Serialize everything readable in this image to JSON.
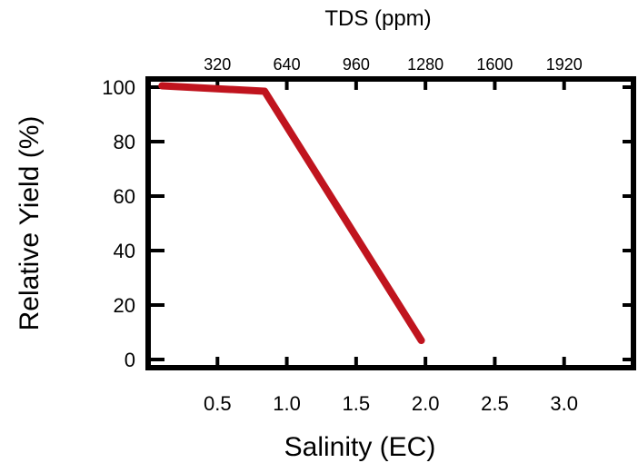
{
  "chart_data": {
    "type": "line",
    "title": "",
    "xlabel": "Salinity (EC)",
    "ylabel": "Relative Yield (%)",
    "top_axis_label": "TDS (ppm)",
    "xlim": [
      0,
      3.5
    ],
    "ylim": [
      -3,
      103
    ],
    "x_ticks": [
      0.5,
      1.0,
      1.5,
      2.0,
      2.5,
      3.0
    ],
    "x_tick_labels": [
      "0.5",
      "1.0",
      "1.5",
      "2.0",
      "2.5",
      "3.0"
    ],
    "y_ticks": [
      0,
      20,
      40,
      60,
      80,
      100
    ],
    "y_tick_labels": [
      "0",
      "20",
      "40",
      "60",
      "80",
      "100"
    ],
    "top_ticks": [
      320,
      640,
      960,
      1280,
      1600,
      1920
    ],
    "top_tick_labels": [
      "320",
      "640",
      "960",
      "1280",
      "1600",
      "1920"
    ],
    "top_axis_factor_ppm_per_ec": 640,
    "grid": false,
    "series": [
      {
        "color": "#c0141e",
        "x": [
          0.1,
          0.84,
          1.97
        ],
        "y": [
          100.5,
          98.5,
          7
        ]
      }
    ]
  }
}
